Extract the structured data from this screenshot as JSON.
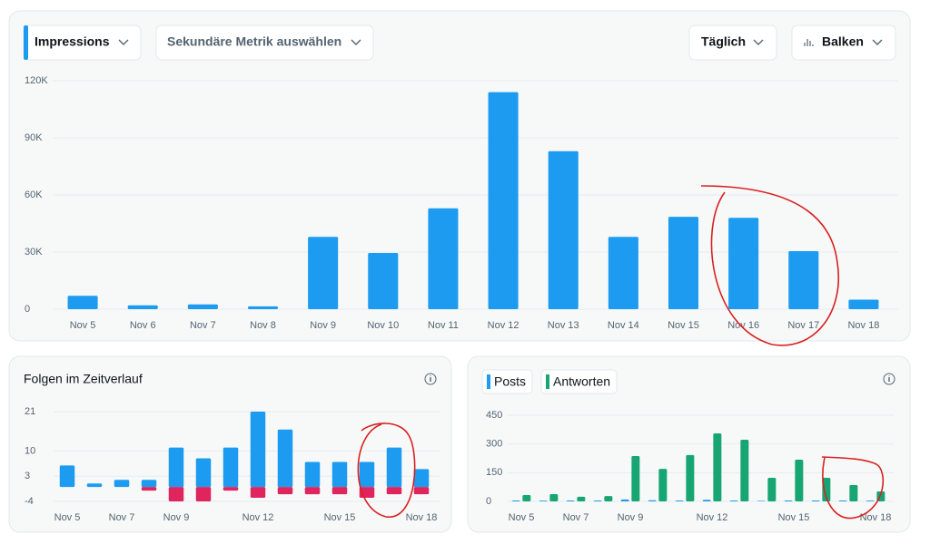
{
  "toolbar": {
    "primary_metric": "Impressions",
    "secondary_metric": "Sekundäre Metrik auswählen",
    "interval": "Täglich",
    "chart_style": "Balken"
  },
  "chart_data": [
    {
      "type": "bar",
      "color": "#1d9bf0",
      "grid": true,
      "categories": [
        "Nov 5",
        "Nov 6",
        "Nov 7",
        "Nov 8",
        "Nov 9",
        "Nov 10",
        "Nov 11",
        "Nov 12",
        "Nov 13",
        "Nov 14",
        "Nov 15",
        "Nov 16",
        "Nov 17",
        "Nov 18"
      ],
      "values": [
        7000,
        2000,
        2500,
        1500,
        38000,
        29500,
        53000,
        114000,
        83000,
        38000,
        48500,
        48000,
        30500,
        5000
      ],
      "ylim": [
        0,
        120000
      ],
      "yticks": [
        0,
        {
          "value": 30000,
          "label": "30K"
        },
        {
          "value": 60000,
          "label": "60K"
        },
        {
          "value": 90000,
          "label": "90K"
        },
        {
          "value": 120000,
          "label": "120K"
        }
      ]
    },
    {
      "type": "bar",
      "title": "Folgen im Zeitverlauf",
      "barmode": "relative",
      "grid": true,
      "categories": [
        "Nov 5",
        null,
        "Nov 7",
        null,
        "Nov 9",
        null,
        null,
        "Nov 12",
        null,
        null,
        "Nov 15",
        null,
        null,
        "Nov 18"
      ],
      "series": [
        {
          "color": "#1d9bf0",
          "values": [
            6,
            1,
            2,
            2,
            11,
            8,
            11,
            21,
            16,
            7,
            7,
            7,
            11,
            5
          ]
        },
        {
          "color": "#e0245e",
          "values": [
            0,
            0,
            0,
            -1,
            -4,
            -4,
            -1,
            -3,
            -2,
            -2,
            -2,
            -3,
            -2,
            -2
          ]
        }
      ],
      "ylim": [
        -4,
        21
      ],
      "yticks": [
        -4,
        3,
        10,
        21
      ]
    },
    {
      "type": "bar",
      "barmode": "group",
      "grid": true,
      "categories": [
        "Nov 5",
        null,
        "Nov 7",
        null,
        "Nov 9",
        null,
        null,
        "Nov 12",
        null,
        null,
        "Nov 15",
        null,
        null,
        "Nov 18"
      ],
      "series": [
        {
          "name": "Posts",
          "color": "#1d9bf0",
          "values": [
            5,
            4,
            5,
            5,
            10,
            6,
            5,
            8,
            5,
            3,
            5,
            5,
            5,
            4
          ]
        },
        {
          "name": "Antworten",
          "color": "#17a673",
          "values": [
            33,
            38,
            24,
            28,
            237,
            170,
            242,
            355,
            322,
            123,
            218,
            123,
            85,
            52
          ]
        }
      ],
      "ylim": [
        0,
        450
      ],
      "yticks": [
        0,
        150,
        300,
        450
      ]
    }
  ]
}
